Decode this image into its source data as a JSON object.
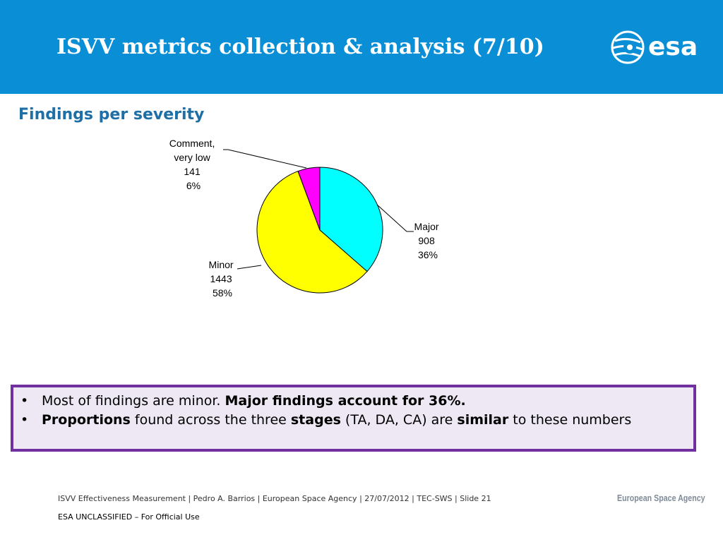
{
  "slide": {
    "title": "ISVV metrics collection & analysis  (7/10)",
    "logo_text": "esa",
    "subtitle": "Findings per severity"
  },
  "chart_data": {
    "type": "pie",
    "slices": [
      {
        "label": "Major",
        "value": 908,
        "percent": "36%",
        "color": "#00ffff"
      },
      {
        "label": "Minor",
        "value": 1443,
        "percent": "58%",
        "color": "#ffff00"
      },
      {
        "label": "Comment, very low",
        "value": 141,
        "percent": "6%",
        "color": "#ff00ff"
      }
    ]
  },
  "notes": {
    "items": [
      {
        "parts": [
          {
            "text": "Most of findings are minor. ",
            "bold": false
          },
          {
            "text": "Major findings account for 36%.",
            "bold": true
          }
        ]
      },
      {
        "parts": [
          {
            "text": "Proportions",
            "bold": true
          },
          {
            "text": " found across the three ",
            "bold": false
          },
          {
            "text": "stages",
            "bold": true
          },
          {
            "text": " (TA, DA, CA) are ",
            "bold": false
          },
          {
            "text": "similar",
            "bold": true
          },
          {
            "text": " to these numbers",
            "bold": false
          }
        ]
      }
    ]
  },
  "footer": {
    "text": "ISVV Effectiveness Measurement | Pedro A. Barrios | European Space Agency | 27/07/2012 | TEC-SWS | Slide  21",
    "org": "European Space Agency",
    "classification": "ESA UNCLASSIFIED – For Official Use"
  },
  "colors": {
    "header": "#0a8fd6",
    "subtitle": "#1d6fa5",
    "notes_border": "#7030a0",
    "notes_background": "#ede8f3"
  }
}
